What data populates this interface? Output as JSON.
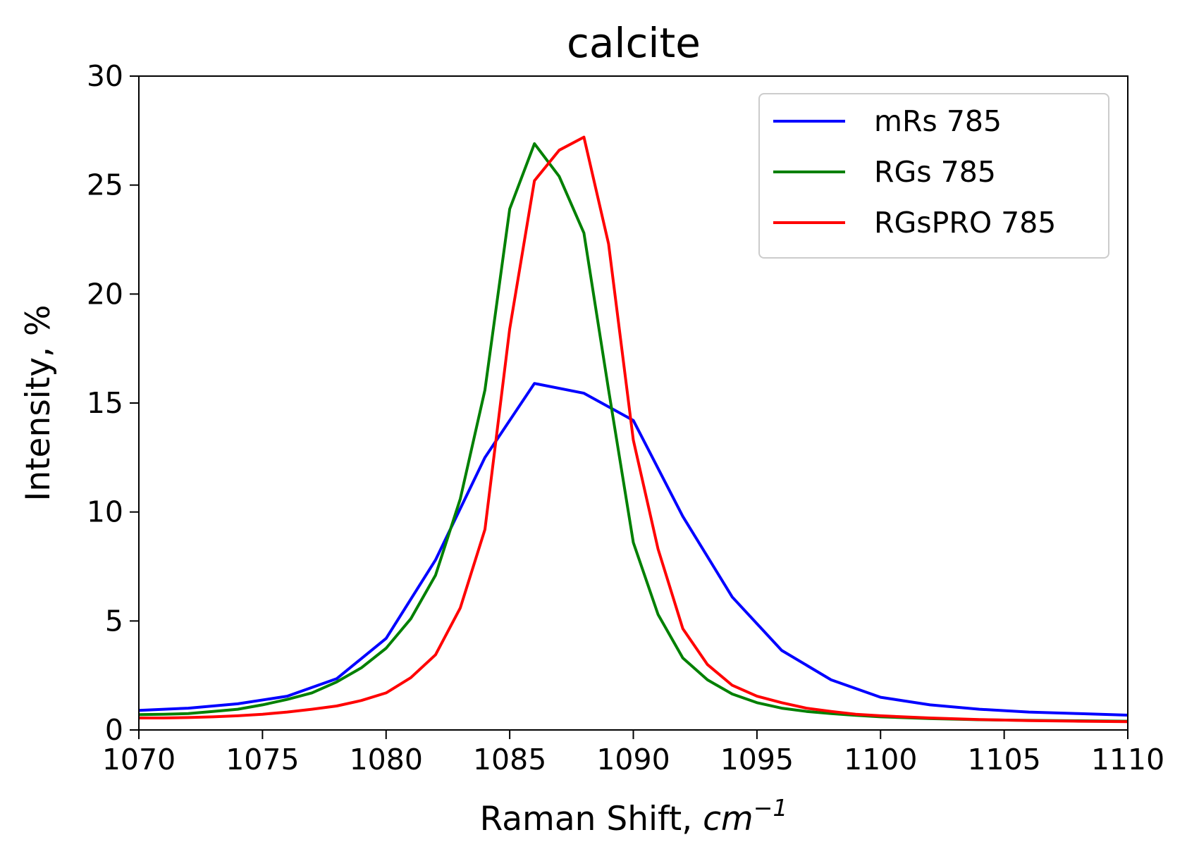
{
  "chart_data": {
    "type": "line",
    "title": "calcite",
    "xlabel": {
      "prefix": "Raman Shift, ",
      "unit": "cm",
      "exponent": "−1"
    },
    "ylabel": "Intensity, %",
    "xlim": [
      1070,
      1110
    ],
    "ylim": [
      0,
      30
    ],
    "xticks": [
      1070,
      1075,
      1080,
      1085,
      1090,
      1095,
      1100,
      1105,
      1110
    ],
    "yticks": [
      0,
      5,
      10,
      15,
      20,
      25,
      30
    ],
    "grid": false,
    "legend_position": "top-right",
    "series": [
      {
        "name": "mRs 785",
        "color": "#0000ff",
        "x": [
          1070,
          1072,
          1074,
          1076,
          1078,
          1080,
          1082,
          1084,
          1086,
          1088,
          1090,
          1092,
          1094,
          1096,
          1098,
          1100,
          1102,
          1104,
          1106,
          1108,
          1110
        ],
        "y": [
          0.9,
          1.0,
          1.2,
          1.55,
          2.35,
          4.2,
          7.8,
          12.5,
          15.9,
          15.45,
          14.2,
          9.8,
          6.1,
          3.65,
          2.3,
          1.5,
          1.15,
          0.95,
          0.82,
          0.75,
          0.68
        ]
      },
      {
        "name": "RGs 785",
        "color": "#008000",
        "x": [
          1070,
          1071,
          1072,
          1073,
          1074,
          1075,
          1076,
          1077,
          1078,
          1079,
          1080,
          1081,
          1082,
          1083,
          1084,
          1085,
          1086,
          1087,
          1088,
          1089,
          1090,
          1091,
          1092,
          1093,
          1094,
          1095,
          1096,
          1097,
          1098,
          1099,
          1100,
          1102,
          1104,
          1106,
          1108,
          1110
        ],
        "y": [
          0.7,
          0.72,
          0.75,
          0.85,
          0.95,
          1.15,
          1.4,
          1.7,
          2.2,
          2.85,
          3.75,
          5.1,
          7.1,
          10.6,
          15.6,
          23.9,
          26.9,
          25.4,
          22.8,
          15.6,
          8.6,
          5.3,
          3.3,
          2.3,
          1.65,
          1.25,
          1.0,
          0.85,
          0.75,
          0.67,
          0.6,
          0.52,
          0.47,
          0.44,
          0.42,
          0.4
        ]
      },
      {
        "name": "RGsPRO 785",
        "color": "#ff0000",
        "x": [
          1070,
          1071,
          1072,
          1073,
          1074,
          1075,
          1076,
          1077,
          1078,
          1079,
          1080,
          1081,
          1082,
          1083,
          1084,
          1085,
          1086,
          1087,
          1088,
          1089,
          1090,
          1091,
          1092,
          1093,
          1094,
          1095,
          1096,
          1097,
          1098,
          1099,
          1100,
          1102,
          1104,
          1106,
          1108,
          1110
        ],
        "y": [
          0.55,
          0.55,
          0.57,
          0.6,
          0.65,
          0.72,
          0.82,
          0.95,
          1.1,
          1.35,
          1.7,
          2.4,
          3.45,
          5.6,
          9.2,
          18.4,
          25.2,
          26.6,
          27.2,
          22.3,
          13.3,
          8.3,
          4.65,
          3.0,
          2.05,
          1.55,
          1.25,
          1.0,
          0.85,
          0.72,
          0.65,
          0.55,
          0.48,
          0.43,
          0.4,
          0.38
        ]
      }
    ]
  }
}
